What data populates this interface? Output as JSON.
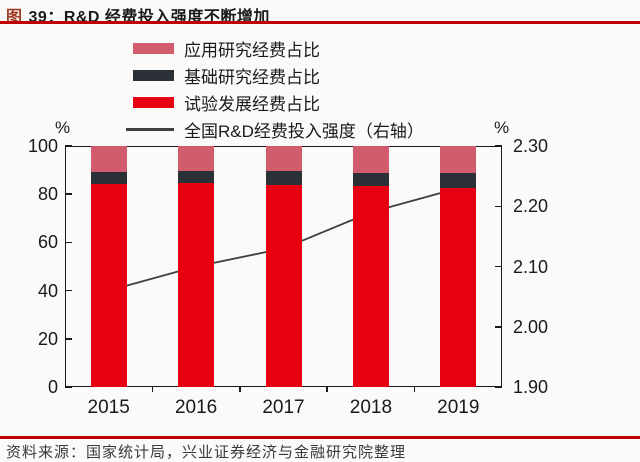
{
  "title": {
    "figure_label": "图",
    "text": "39：R&D 经费投入强度不断增加"
  },
  "legend": {
    "items": [
      {
        "label": "应用研究经费占比",
        "swatch": "bar",
        "color": "#d25b6d"
      },
      {
        "label": "基础研究经费占比",
        "swatch": "bar",
        "color": "#2b2f36"
      },
      {
        "label": "试验发展经费占比",
        "swatch": "bar",
        "color": "#e60012"
      },
      {
        "label": "全国R&D经费投入强度（右轴）",
        "swatch": "line",
        "color": "#3f3f3f"
      }
    ]
  },
  "chart_data": {
    "type": "bar",
    "subtype": "stacked-bars-with-line",
    "title": "R&D 经费投入强度不断增加",
    "categories": [
      "2015",
      "2016",
      "2017",
      "2018",
      "2019"
    ],
    "series": [
      {
        "name": "试验发展经费占比",
        "type": "bar",
        "stack": "share",
        "color": "#e60012",
        "values": [
          84.2,
          84.5,
          84.0,
          83.3,
          82.7
        ]
      },
      {
        "name": "基础研究经费占比",
        "type": "bar",
        "stack": "share",
        "color": "#2b2f36",
        "values": [
          5.1,
          5.2,
          5.5,
          5.5,
          6.0
        ]
      },
      {
        "name": "应用研究经费占比",
        "type": "bar",
        "stack": "share",
        "color": "#d25b6d",
        "values": [
          10.7,
          10.3,
          10.5,
          11.2,
          11.3
        ]
      },
      {
        "name": "全国R&D经费投入强度（右轴）",
        "type": "line",
        "axis": "right",
        "color": "#3f3f3f",
        "values": [
          2.06,
          2.1,
          2.13,
          2.19,
          2.23
        ]
      }
    ],
    "left_axis": {
      "label": "%",
      "min": 0,
      "max": 100,
      "ticks": [
        100,
        80,
        60,
        40,
        20,
        0
      ]
    },
    "right_axis": {
      "label": "%",
      "min": 1.9,
      "max": 2.3,
      "ticks": [
        "2.30",
        "2.20",
        "2.10",
        "2.00",
        "1.90"
      ]
    },
    "legend_position": "top-left-stacked",
    "grid": false
  },
  "footer": {
    "source": "资料来源：国家统计局，兴业证券经济与金融研究院整理"
  }
}
